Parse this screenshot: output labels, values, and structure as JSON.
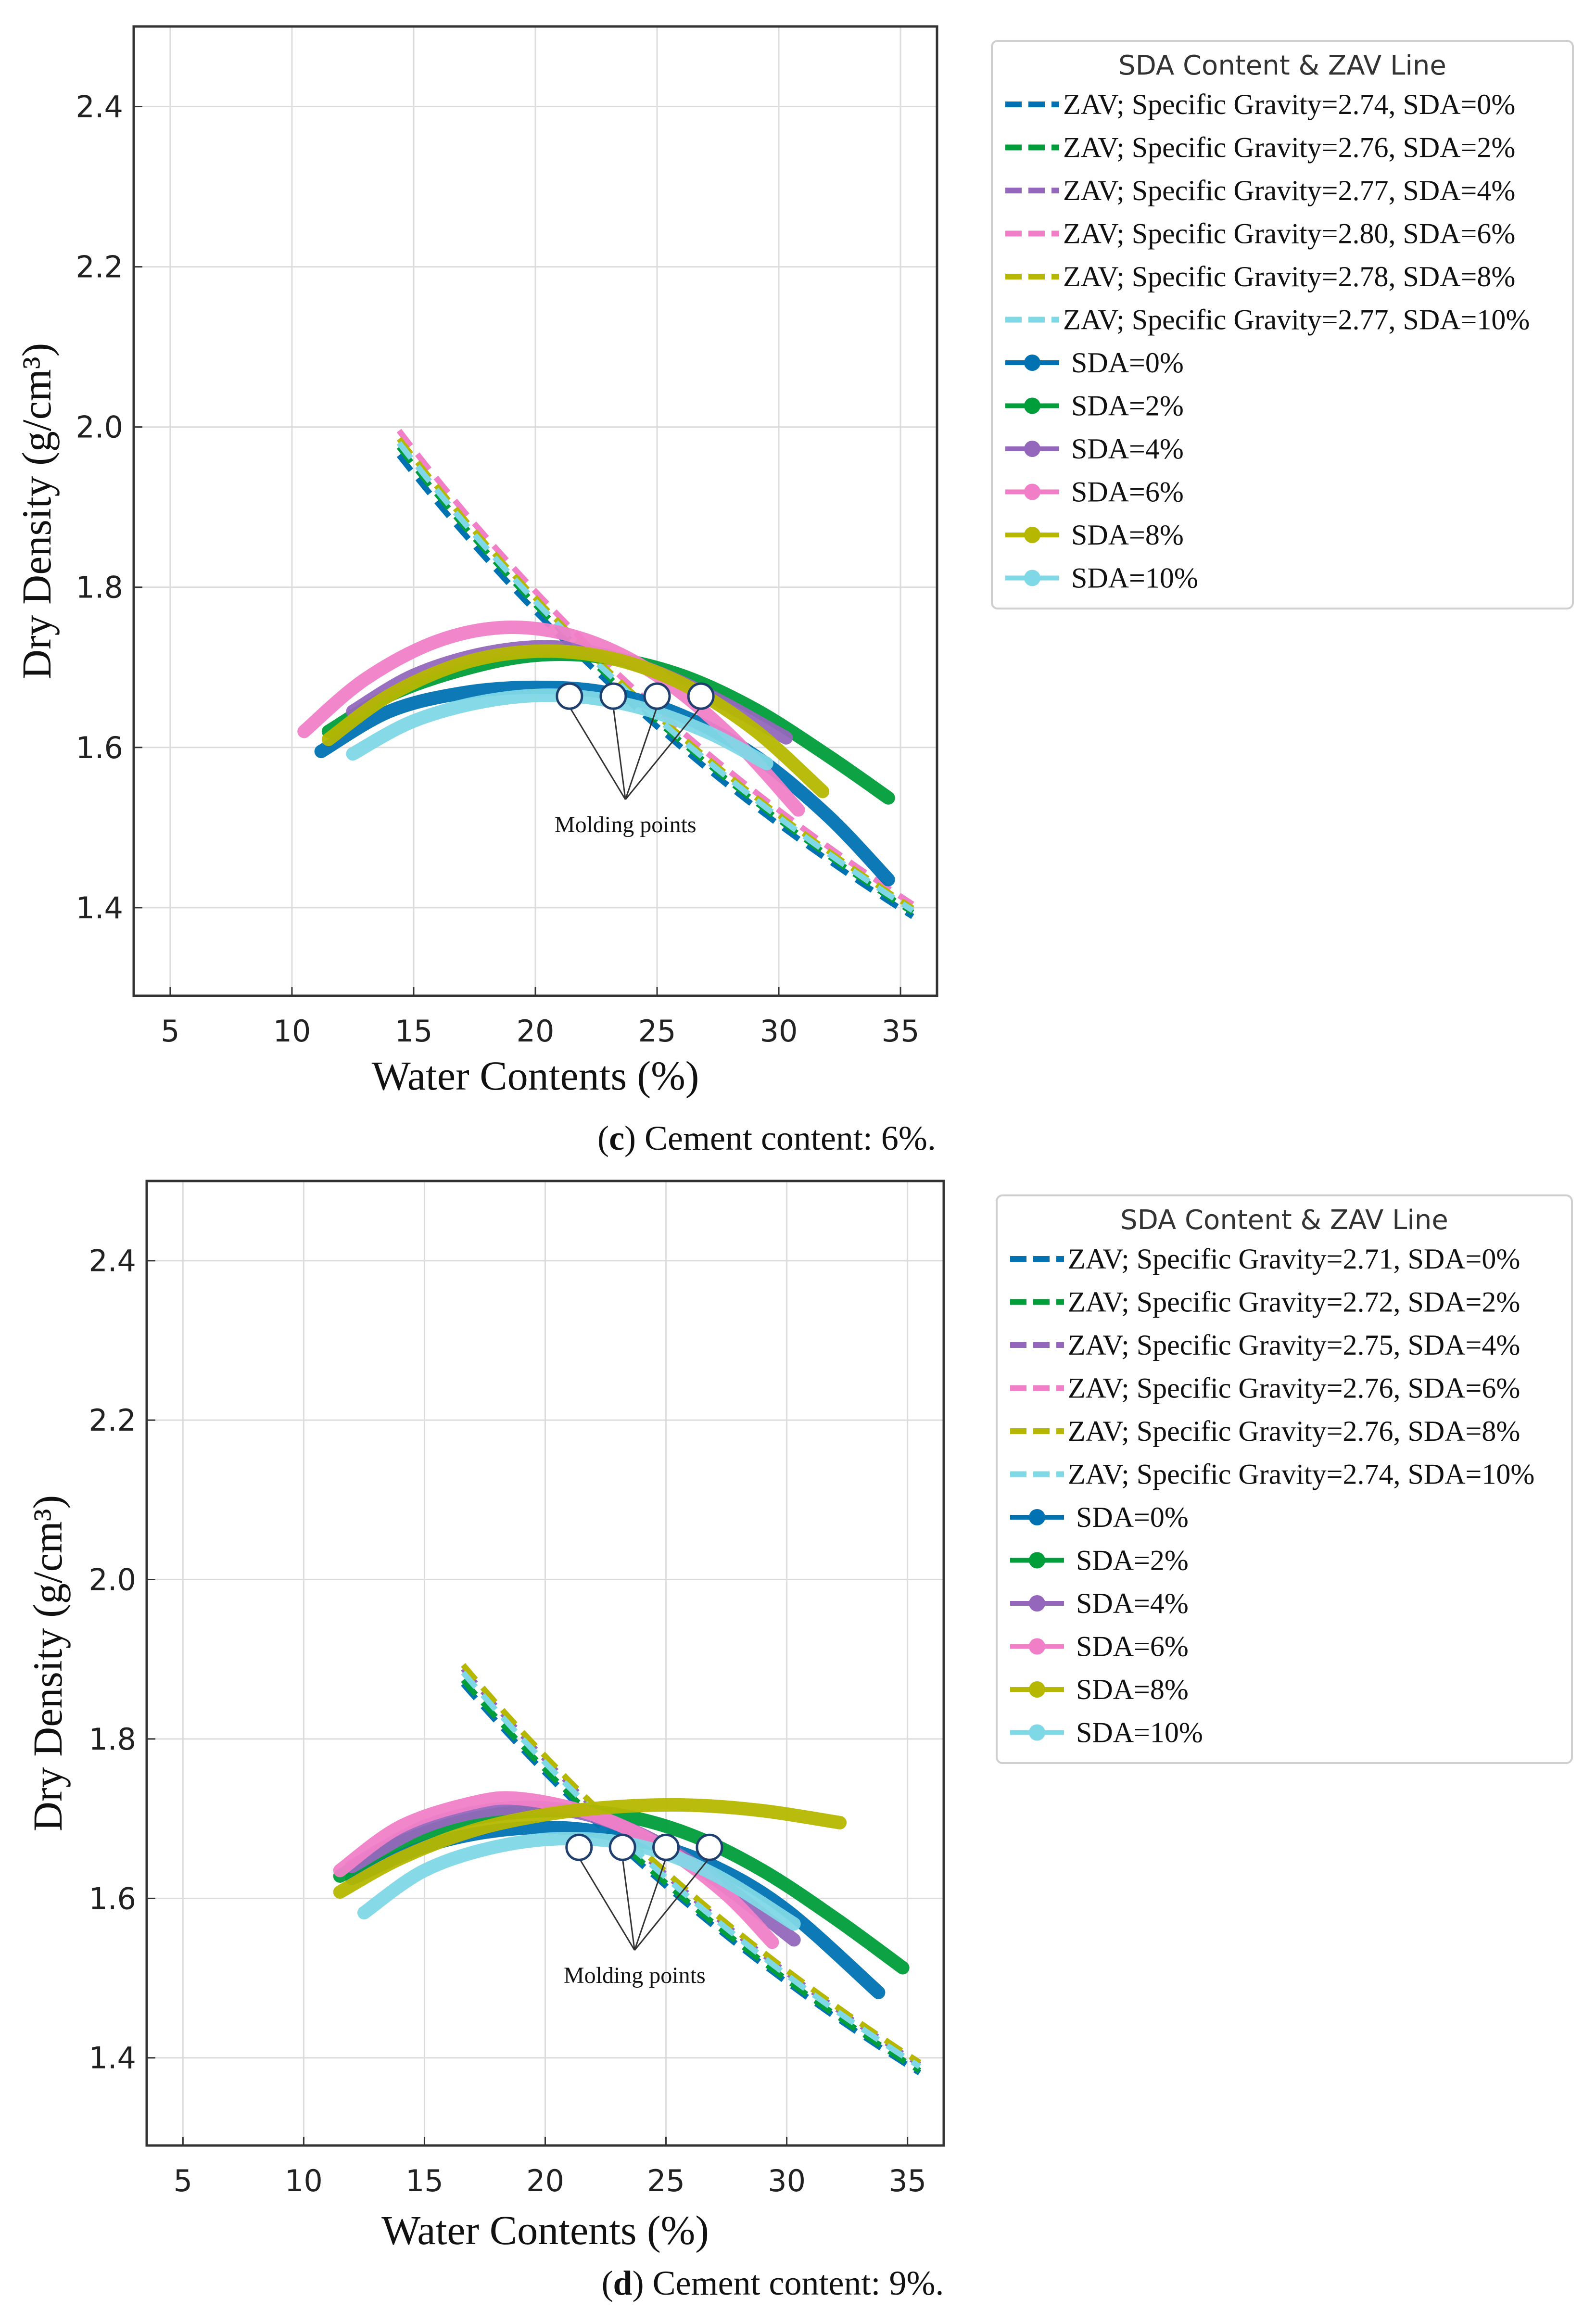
{
  "chart_data": [
    {
      "id": "c",
      "type": "line",
      "caption_letter": "c",
      "caption_text": " Cement content: 6%.",
      "xlabel": "Water Contents (%)",
      "ylabel": "Dry Density (g/cm³)",
      "xlim": [
        3.5,
        36.5
      ],
      "ylim": [
        1.29,
        2.5
      ],
      "xticks": [
        5,
        10,
        15,
        20,
        25,
        30,
        35
      ],
      "yticks": [
        1.4,
        1.6,
        1.8,
        2.0,
        2.2,
        2.4
      ],
      "grid": true,
      "legend_title": "SDA Content & ZAV Line",
      "legend_position": "top-right, outside",
      "annotation": "Molding points",
      "zav_series": [
        {
          "name": "ZAV; Specific Gravity=2.74, SDA=0%",
          "color": "#0072b2",
          "Gs": 2.74
        },
        {
          "name": "ZAV; Specific Gravity=2.76, SDA=2%",
          "color": "#009e3a",
          "Gs": 2.76
        },
        {
          "name": "ZAV; Specific Gravity=2.77, SDA=4%",
          "color": "#9467bd",
          "Gs": 2.77
        },
        {
          "name": "ZAV; Specific Gravity=2.80, SDA=6%",
          "color": "#f07fc8",
          "Gs": 2.8
        },
        {
          "name": "ZAV; Specific Gravity=2.78, SDA=8%",
          "color": "#b5b700",
          "Gs": 2.78
        },
        {
          "name": "ZAV; Specific Gravity=2.77, SDA=10%",
          "color": "#7fd8e6",
          "Gs": 2.77
        }
      ],
      "zav_x_range": [
        14.4,
        35.5
      ],
      "compaction_series": [
        {
          "name": "SDA=0%",
          "color": "#0072b2",
          "x": [
            11.2,
            14,
            17,
            20,
            23,
            26,
            29,
            32,
            34.5
          ],
          "y": [
            1.595,
            1.645,
            1.668,
            1.675,
            1.668,
            1.64,
            1.59,
            1.515,
            1.435
          ]
        },
        {
          "name": "SDA=2%",
          "color": "#009e3a",
          "x": [
            11.5,
            14,
            17,
            20,
            23,
            26,
            29,
            32,
            34.5
          ],
          "y": [
            1.62,
            1.665,
            1.697,
            1.715,
            1.712,
            1.69,
            1.648,
            1.59,
            1.537
          ]
        },
        {
          "name": "SDA=4%",
          "color": "#9467bd",
          "x": [
            12.5,
            15,
            18,
            21,
            24,
            27,
            30.3
          ],
          "y": [
            1.645,
            1.69,
            1.718,
            1.725,
            1.705,
            1.667,
            1.612
          ]
        },
        {
          "name": "SDA=6%",
          "color": "#f07fc8",
          "x": [
            10.5,
            13,
            16,
            19,
            22,
            25,
            28,
            30.8
          ],
          "y": [
            1.62,
            1.685,
            1.733,
            1.75,
            1.735,
            1.69,
            1.615,
            1.522
          ]
        },
        {
          "name": "SDA=8%",
          "color": "#b5b700",
          "x": [
            11.5,
            14,
            17,
            20,
            23,
            26,
            29,
            31.8
          ],
          "y": [
            1.61,
            1.665,
            1.705,
            1.72,
            1.712,
            1.68,
            1.622,
            1.545
          ]
        },
        {
          "name": "SDA=10%",
          "color": "#7fd8e6",
          "x": [
            12.5,
            15,
            18,
            21,
            24,
            27,
            29.5
          ],
          "y": [
            1.592,
            1.633,
            1.658,
            1.665,
            1.652,
            1.62,
            1.58
          ]
        }
      ],
      "molding_points": {
        "x": [
          21.4,
          23.2,
          25.0,
          26.8
        ],
        "y": [
          1.664,
          1.664,
          1.664,
          1.664
        ]
      },
      "annotation_anchor": {
        "x": 23.7,
        "y": 1.535
      }
    },
    {
      "id": "d",
      "type": "line",
      "caption_letter": "d",
      "caption_text": " Cement content: 9%.",
      "xlabel": "Water Contents (%)",
      "ylabel": "Dry Density (g/cm³)",
      "xlim": [
        3.5,
        36.5
      ],
      "ylim": [
        1.29,
        2.5
      ],
      "xticks": [
        5,
        10,
        15,
        20,
        25,
        30,
        35
      ],
      "yticks": [
        1.4,
        1.6,
        1.8,
        2.0,
        2.2,
        2.4
      ],
      "grid": true,
      "legend_title": "SDA Content & ZAV Line",
      "legend_position": "top-right, outside",
      "annotation": "Molding points",
      "zav_series": [
        {
          "name": "ZAV; Specific Gravity=2.71, SDA=0%",
          "color": "#0072b2",
          "Gs": 2.71
        },
        {
          "name": "ZAV; Specific Gravity=2.72, SDA=2%",
          "color": "#009e3a",
          "Gs": 2.72
        },
        {
          "name": "ZAV; Specific Gravity=2.75, SDA=4%",
          "color": "#9467bd",
          "Gs": 2.75
        },
        {
          "name": "ZAV; Specific Gravity=2.76, SDA=6%",
          "color": "#f07fc8",
          "Gs": 2.76
        },
        {
          "name": "ZAV; Specific Gravity=2.76, SDA=8%",
          "color": "#b5b700",
          "Gs": 2.76
        },
        {
          "name": "ZAV; Specific Gravity=2.74, SDA=10%",
          "color": "#7fd8e6",
          "Gs": 2.74
        }
      ],
      "zav_x_range": [
        16.6,
        35.5
      ],
      "compaction_series": [
        {
          "name": "SDA=0%",
          "color": "#0072b2",
          "x": [
            12,
            15,
            18,
            21,
            24,
            27,
            30,
            33.8
          ],
          "y": [
            1.625,
            1.665,
            1.685,
            1.688,
            1.672,
            1.64,
            1.585,
            1.482
          ]
        },
        {
          "name": "SDA=2%",
          "color": "#009e3a",
          "x": [
            11.5,
            14,
            17,
            20,
            23,
            26,
            29,
            32,
            34.8
          ],
          "y": [
            1.628,
            1.67,
            1.7,
            1.71,
            1.705,
            1.68,
            1.635,
            1.575,
            1.513
          ]
        },
        {
          "name": "SDA=4%",
          "color": "#9467bd",
          "x": [
            12,
            15,
            18,
            21,
            24,
            27,
            30.3
          ],
          "y": [
            1.64,
            1.69,
            1.712,
            1.71,
            1.68,
            1.625,
            1.548
          ]
        },
        {
          "name": "SDA=6%",
          "color": "#f07fc8",
          "x": [
            11.5,
            14,
            17,
            19,
            22,
            25,
            27.5,
            29.4
          ],
          "y": [
            1.635,
            1.69,
            1.72,
            1.725,
            1.705,
            1.662,
            1.605,
            1.545
          ]
        },
        {
          "name": "SDA=8%",
          "color": "#b5b700",
          "x": [
            11.5,
            14,
            17,
            20,
            23,
            26,
            29,
            32.2
          ],
          "y": [
            1.608,
            1.65,
            1.685,
            1.705,
            1.715,
            1.717,
            1.71,
            1.695
          ]
        },
        {
          "name": "SDA=10%",
          "color": "#7fd8e6",
          "x": [
            12.5,
            15,
            18,
            21,
            24,
            27,
            30.3
          ],
          "y": [
            1.582,
            1.635,
            1.665,
            1.675,
            1.665,
            1.63,
            1.568
          ]
        }
      ],
      "molding_points": {
        "x": [
          21.4,
          23.2,
          25.0,
          26.8
        ],
        "y": [
          1.664,
          1.664,
          1.664,
          1.664
        ]
      },
      "annotation_anchor": {
        "x": 23.7,
        "y": 1.535
      }
    }
  ]
}
